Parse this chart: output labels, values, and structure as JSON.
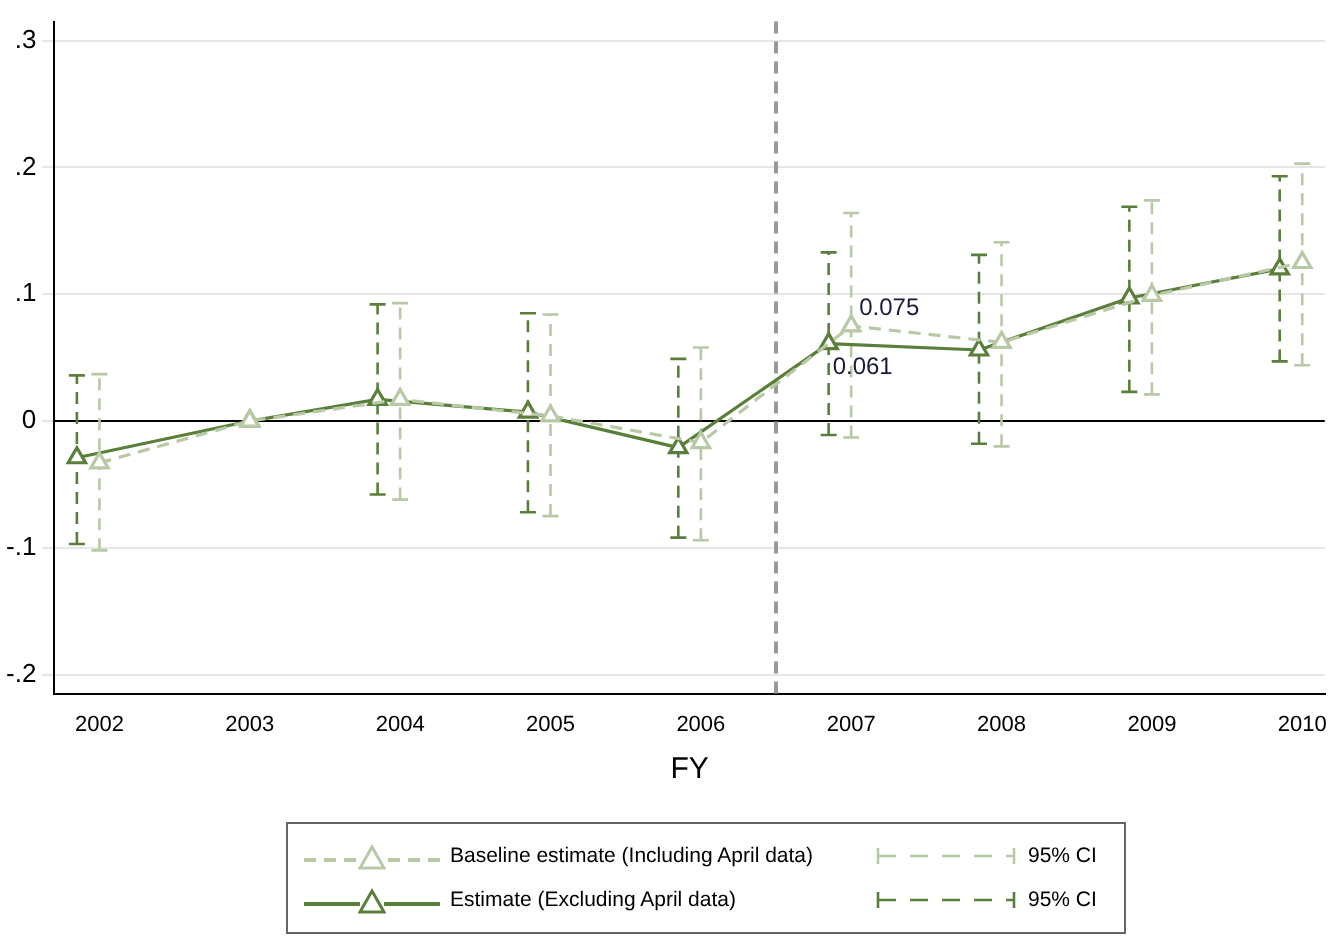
{
  "chart_data": {
    "type": "line",
    "xlabel": "FY",
    "xlim": [
      2001.7,
      2010.15
    ],
    "xticks": [
      2002,
      2003,
      2004,
      2005,
      2006,
      2007,
      2008,
      2009,
      2010
    ],
    "ylim": [
      -0.215,
      0.315
    ],
    "yticks": [
      {
        "value": 0.3,
        "label": ".3"
      },
      {
        "value": 0.2,
        "label": ".2"
      },
      {
        "value": 0.1,
        "label": ".1"
      },
      0,
      {
        "value": -0.1,
        "label": "-.1"
      },
      {
        "value": -0.2,
        "label": "-.2"
      }
    ],
    "grid": "y",
    "legend": "bottom",
    "marker": "triangle",
    "series": [
      {
        "name": "Baseline estimate (Including April data)",
        "color": "#b8c9a5",
        "line_style": "dashed",
        "x": [
          2002,
          2003,
          2004,
          2005,
          2006,
          2007,
          2008,
          2009,
          2010
        ],
        "values": [
          -0.033,
          0,
          0.017,
          0.004,
          -0.017,
          0.075,
          0.062,
          0.099,
          0.125
        ],
        "errors": [
          [
            -0.102,
            0.037
          ],
          null,
          [
            -0.062,
            0.093
          ],
          [
            -0.075,
            0.084
          ],
          [
            -0.094,
            0.058
          ],
          [
            -0.013,
            0.164
          ],
          [
            -0.02,
            0.141
          ],
          [
            0.021,
            0.174
          ],
          [
            0.044,
            0.203
          ]
        ]
      },
      {
        "name": "Estimate (Excluding April data)",
        "color": "#5a7f3a",
        "line_style": "solid",
        "x": [
          2001.85,
          2003,
          2003.85,
          2004.85,
          2005.85,
          2006.85,
          2007.85,
          2008.85,
          2009.85
        ],
        "values": [
          -0.029,
          0,
          0.017,
          0.007,
          -0.021,
          0.061,
          0.056,
          0.097,
          0.12
        ],
        "errors": [
          [
            -0.097,
            0.036
          ],
          null,
          [
            -0.058,
            0.092
          ],
          [
            -0.072,
            0.085
          ],
          [
            -0.092,
            0.049
          ],
          [
            -0.011,
            0.133
          ],
          [
            -0.018,
            0.131
          ],
          [
            0.023,
            0.169
          ],
          [
            0.047,
            0.193
          ]
        ]
      }
    ],
    "ref_lines": [
      {
        "axis": "y",
        "value": 0,
        "color": "#000000",
        "line_style": "solid"
      },
      {
        "axis": "x",
        "value": 2006.5,
        "color": "#999999",
        "line_style": "dashed"
      }
    ],
    "annotations": [
      {
        "text": "0.075",
        "x": 2007,
        "y": 0.075
      },
      {
        "text": "0.061",
        "x": 2006.85,
        "y": 0.061
      },
      "95% CI",
      "95% CI"
    ]
  }
}
